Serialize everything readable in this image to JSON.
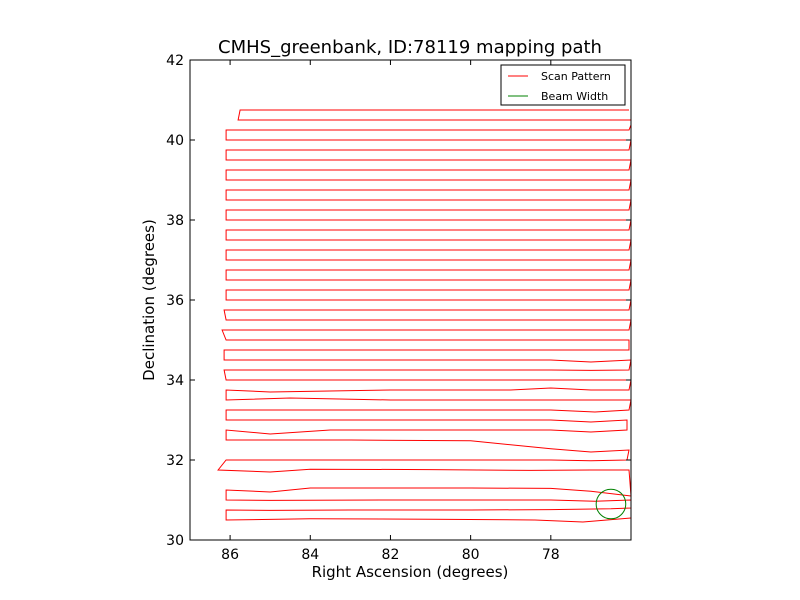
{
  "chart_data": {
    "type": "line",
    "title": "CMHS_greenbank, ID:78119 mapping path",
    "xlabel": "Right Ascension (degrees)",
    "ylabel": "Declination (degrees)",
    "xlim": [
      87.0,
      76.0
    ],
    "ylim": [
      30,
      42
    ],
    "xticks": [
      86,
      84,
      82,
      80,
      78
    ],
    "xtick_labels": [
      "86",
      "84",
      "82",
      "80",
      "78"
    ],
    "yticks": [
      30,
      32,
      34,
      36,
      38,
      40,
      42
    ],
    "ytick_labels": [
      "30",
      "32",
      "34",
      "36",
      "38",
      "40",
      "42"
    ],
    "grid": false,
    "legend_position": "top-right",
    "legend": [
      {
        "label": "Scan Pattern",
        "color": "#ff0000"
      },
      {
        "label": "Beam Width",
        "color": "#008000"
      }
    ],
    "series": [
      {
        "name": "Scan Pattern",
        "color": "#ff0000",
        "points": [
          [
            76.0,
            30.55
          ],
          [
            77.2,
            30.45
          ],
          [
            78.4,
            30.5
          ],
          [
            81.0,
            30.52
          ],
          [
            84.0,
            30.53
          ],
          [
            86.1,
            30.5
          ],
          [
            86.1,
            30.75
          ],
          [
            85.0,
            30.74
          ],
          [
            83.0,
            30.75
          ],
          [
            80.0,
            30.75
          ],
          [
            78.0,
            30.76
          ],
          [
            76.5,
            30.78
          ],
          [
            76.0,
            30.8
          ],
          [
            76.0,
            31.0
          ],
          [
            76.9,
            30.97
          ],
          [
            78.0,
            31.0
          ],
          [
            80.0,
            31.0
          ],
          [
            82.0,
            31.0
          ],
          [
            85.0,
            30.99
          ],
          [
            86.1,
            31.0
          ],
          [
            86.1,
            31.25
          ],
          [
            85.0,
            31.2
          ],
          [
            84.0,
            31.3
          ],
          [
            80.0,
            31.3
          ],
          [
            78.0,
            31.29
          ],
          [
            77.0,
            31.22
          ],
          [
            76.0,
            31.1
          ],
          [
            76.05,
            31.75
          ],
          [
            77.0,
            31.75
          ],
          [
            78.5,
            31.74
          ],
          [
            81.0,
            31.76
          ],
          [
            84.0,
            31.77
          ],
          [
            85.0,
            31.7
          ],
          [
            86.3,
            31.75
          ],
          [
            86.1,
            32.0
          ],
          [
            84.0,
            32.0
          ],
          [
            81.0,
            32.0
          ],
          [
            78.0,
            32.0
          ],
          [
            77.0,
            31.98
          ],
          [
            76.1,
            32.0
          ],
          [
            76.05,
            32.25
          ],
          [
            77.0,
            32.2
          ],
          [
            78.0,
            32.28
          ],
          [
            80.0,
            32.48
          ],
          [
            83.0,
            32.5
          ],
          [
            85.0,
            32.5
          ],
          [
            86.1,
            32.5
          ],
          [
            86.1,
            32.75
          ],
          [
            85.0,
            32.65
          ],
          [
            83.5,
            32.75
          ],
          [
            80.0,
            32.75
          ],
          [
            78.0,
            32.75
          ],
          [
            77.0,
            32.7
          ],
          [
            76.1,
            32.75
          ],
          [
            76.1,
            33.0
          ],
          [
            77.0,
            32.95
          ],
          [
            78.0,
            33.0
          ],
          [
            80.0,
            33.0
          ],
          [
            82.0,
            33.0
          ],
          [
            85.0,
            33.0
          ],
          [
            86.1,
            33.0
          ],
          [
            86.1,
            33.25
          ],
          [
            85.0,
            33.25
          ],
          [
            83.0,
            33.25
          ],
          [
            80.0,
            33.25
          ],
          [
            78.0,
            33.25
          ],
          [
            76.9,
            33.2
          ],
          [
            76.05,
            33.25
          ],
          [
            76.0,
            33.5
          ],
          [
            77.0,
            33.5
          ],
          [
            78.0,
            33.5
          ],
          [
            80.0,
            33.5
          ],
          [
            82.0,
            33.5
          ],
          [
            84.5,
            33.55
          ],
          [
            86.1,
            33.5
          ],
          [
            86.1,
            33.75
          ],
          [
            85.0,
            33.7
          ],
          [
            82.0,
            33.75
          ],
          [
            79.0,
            33.75
          ],
          [
            78.0,
            33.8
          ],
          [
            77.0,
            33.75
          ],
          [
            76.05,
            33.75
          ],
          [
            76.0,
            34.0
          ],
          [
            77.0,
            34.0
          ],
          [
            78.0,
            34.0
          ],
          [
            80.0,
            34.0
          ],
          [
            82.0,
            34.0
          ],
          [
            84.0,
            34.0
          ],
          [
            86.1,
            34.0
          ],
          [
            86.15,
            34.25
          ],
          [
            85.0,
            34.25
          ],
          [
            83.0,
            34.25
          ],
          [
            80.0,
            34.25
          ],
          [
            78.0,
            34.25
          ],
          [
            77.0,
            34.24
          ],
          [
            76.05,
            34.25
          ],
          [
            76.0,
            34.5
          ],
          [
            77.0,
            34.45
          ],
          [
            78.0,
            34.5
          ],
          [
            80.0,
            34.5
          ],
          [
            82.0,
            34.5
          ],
          [
            84.5,
            34.5
          ],
          [
            86.15,
            34.5
          ],
          [
            86.15,
            34.75
          ],
          [
            85.0,
            34.75
          ],
          [
            83.0,
            34.75
          ],
          [
            80.0,
            34.75
          ],
          [
            78.0,
            34.75
          ],
          [
            77.0,
            34.75
          ],
          [
            76.05,
            34.75
          ],
          [
            76.05,
            35.0
          ],
          [
            77.0,
            35.0
          ],
          [
            78.0,
            35.0
          ],
          [
            80.0,
            35.0
          ],
          [
            82.0,
            35.0
          ],
          [
            84.5,
            35.0
          ],
          [
            86.1,
            35.0
          ],
          [
            86.2,
            35.25
          ],
          [
            85.0,
            35.25
          ],
          [
            83.0,
            35.25
          ],
          [
            80.0,
            35.25
          ],
          [
            78.0,
            35.25
          ],
          [
            77.0,
            35.25
          ],
          [
            76.05,
            35.25
          ],
          [
            76.0,
            35.5
          ],
          [
            77.0,
            35.5
          ],
          [
            78.0,
            35.5
          ],
          [
            80.0,
            35.5
          ],
          [
            82.0,
            35.5
          ],
          [
            84.5,
            35.5
          ],
          [
            86.1,
            35.5
          ],
          [
            86.15,
            35.75
          ],
          [
            85.0,
            35.75
          ],
          [
            83.0,
            35.75
          ],
          [
            80.0,
            35.75
          ],
          [
            78.0,
            35.75
          ],
          [
            77.0,
            35.75
          ],
          [
            76.05,
            35.75
          ],
          [
            76.0,
            36.0
          ],
          [
            77.0,
            36.0
          ],
          [
            78.0,
            36.0
          ],
          [
            80.0,
            36.0
          ],
          [
            82.0,
            36.0
          ],
          [
            84.5,
            36.0
          ],
          [
            86.1,
            36.0
          ],
          [
            86.1,
            36.25
          ],
          [
            85.0,
            36.25
          ],
          [
            83.0,
            36.25
          ],
          [
            80.0,
            36.25
          ],
          [
            78.0,
            36.25
          ],
          [
            77.0,
            36.25
          ],
          [
            76.05,
            36.25
          ],
          [
            76.0,
            36.5
          ],
          [
            77.0,
            36.5
          ],
          [
            78.0,
            36.5
          ],
          [
            80.0,
            36.5
          ],
          [
            82.0,
            36.5
          ],
          [
            84.5,
            36.5
          ],
          [
            86.1,
            36.5
          ],
          [
            86.1,
            36.75
          ],
          [
            85.0,
            36.75
          ],
          [
            83.0,
            36.75
          ],
          [
            80.0,
            36.75
          ],
          [
            78.0,
            36.75
          ],
          [
            77.0,
            36.75
          ],
          [
            76.05,
            36.75
          ],
          [
            76.0,
            37.0
          ],
          [
            77.0,
            37.0
          ],
          [
            78.0,
            37.0
          ],
          [
            80.0,
            37.0
          ],
          [
            82.0,
            37.0
          ],
          [
            84.5,
            37.0
          ],
          [
            86.1,
            37.0
          ],
          [
            86.1,
            37.25
          ],
          [
            85.0,
            37.25
          ],
          [
            83.0,
            37.25
          ],
          [
            80.0,
            37.25
          ],
          [
            78.0,
            37.25
          ],
          [
            77.0,
            37.25
          ],
          [
            76.05,
            37.25
          ],
          [
            76.0,
            37.5
          ],
          [
            77.0,
            37.5
          ],
          [
            78.0,
            37.5
          ],
          [
            80.0,
            37.5
          ],
          [
            82.0,
            37.5
          ],
          [
            84.5,
            37.5
          ],
          [
            86.1,
            37.5
          ],
          [
            86.1,
            37.75
          ],
          [
            85.0,
            37.75
          ],
          [
            83.0,
            37.75
          ],
          [
            80.0,
            37.75
          ],
          [
            78.0,
            37.75
          ],
          [
            77.0,
            37.75
          ],
          [
            76.05,
            37.75
          ],
          [
            76.0,
            38.0
          ],
          [
            77.0,
            38.0
          ],
          [
            78.0,
            38.0
          ],
          [
            80.0,
            38.0
          ],
          [
            82.0,
            38.0
          ],
          [
            84.5,
            38.0
          ],
          [
            86.1,
            38.0
          ],
          [
            86.1,
            38.25
          ],
          [
            85.0,
            38.25
          ],
          [
            83.0,
            38.25
          ],
          [
            80.0,
            38.25
          ],
          [
            78.0,
            38.25
          ],
          [
            77.0,
            38.25
          ],
          [
            76.05,
            38.25
          ],
          [
            76.0,
            38.5
          ],
          [
            77.0,
            38.5
          ],
          [
            78.0,
            38.5
          ],
          [
            80.0,
            38.5
          ],
          [
            82.0,
            38.5
          ],
          [
            84.5,
            38.5
          ],
          [
            86.1,
            38.5
          ],
          [
            86.1,
            38.75
          ],
          [
            85.0,
            38.75
          ],
          [
            83.0,
            38.75
          ],
          [
            80.0,
            38.75
          ],
          [
            78.0,
            38.75
          ],
          [
            77.0,
            38.75
          ],
          [
            76.05,
            38.75
          ],
          [
            76.0,
            39.0
          ],
          [
            77.0,
            39.0
          ],
          [
            78.0,
            39.0
          ],
          [
            80.0,
            39.0
          ],
          [
            82.0,
            39.0
          ],
          [
            84.5,
            39.0
          ],
          [
            86.1,
            39.0
          ],
          [
            86.1,
            39.25
          ],
          [
            85.0,
            39.25
          ],
          [
            83.0,
            39.25
          ],
          [
            80.0,
            39.25
          ],
          [
            78.0,
            39.25
          ],
          [
            77.0,
            39.25
          ],
          [
            76.05,
            39.25
          ],
          [
            76.0,
            39.5
          ],
          [
            77.0,
            39.5
          ],
          [
            78.0,
            39.5
          ],
          [
            80.0,
            39.5
          ],
          [
            82.0,
            39.5
          ],
          [
            84.5,
            39.5
          ],
          [
            86.1,
            39.5
          ],
          [
            86.1,
            39.75
          ],
          [
            85.0,
            39.75
          ],
          [
            83.0,
            39.75
          ],
          [
            80.0,
            39.75
          ],
          [
            78.0,
            39.75
          ],
          [
            77.0,
            39.75
          ],
          [
            76.05,
            39.75
          ],
          [
            76.0,
            40.0
          ],
          [
            77.0,
            40.0
          ],
          [
            78.0,
            40.0
          ],
          [
            80.0,
            40.0
          ],
          [
            82.0,
            40.0
          ],
          [
            84.5,
            40.0
          ],
          [
            86.1,
            40.0
          ],
          [
            86.1,
            40.25
          ],
          [
            85.0,
            40.25
          ],
          [
            83.0,
            40.25
          ],
          [
            80.0,
            40.25
          ],
          [
            78.0,
            40.25
          ],
          [
            77.0,
            40.25
          ],
          [
            76.05,
            40.25
          ],
          [
            75.95,
            40.5
          ],
          [
            77.0,
            40.5
          ],
          [
            78.0,
            40.5
          ],
          [
            80.0,
            40.5
          ],
          [
            82.0,
            40.5
          ],
          [
            84.5,
            40.5
          ],
          [
            85.8,
            40.5
          ],
          [
            85.75,
            40.75
          ],
          [
            84.0,
            40.75
          ],
          [
            82.0,
            40.75
          ],
          [
            80.0,
            40.75
          ],
          [
            78.0,
            40.75
          ],
          [
            77.0,
            40.75
          ],
          [
            76.05,
            40.75
          ]
        ]
      },
      {
        "name": "Beam Width",
        "color": "#008000",
        "circle": {
          "center": [
            76.5,
            30.9
          ],
          "radius": 0.37
        }
      }
    ]
  }
}
